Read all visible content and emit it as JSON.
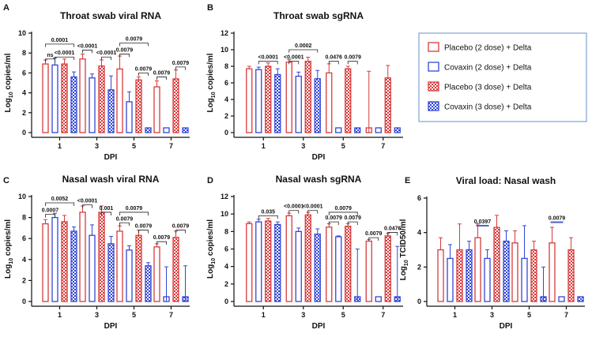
{
  "legend": [
    "Placebo (2 dose) + Delta",
    "Covaxin (2 dose) + Delta",
    "Placebo (3 dose) + Delta",
    "Covaxin (3 dose) + Delta"
  ],
  "colors": {
    "placebo": "#d93a3a",
    "covaxin": "#3246d6",
    "axis": "#111111",
    "log_label_blue": "#555599"
  },
  "chart_data": [
    {
      "panel": "A",
      "type": "bar",
      "title": "Throat swab viral RNA",
      "ylabel_pre": "Log",
      "ylabel_sub": "10",
      "ylabel_post": " copies/ml",
      "xlabel": "DPI",
      "categories": [
        "1",
        "3",
        "5",
        "7"
      ],
      "ylim": [
        0,
        10
      ],
      "yticks": [
        0,
        2,
        4,
        6,
        8,
        10
      ],
      "series": [
        {
          "name": "Placebo (2 dose) + Delta",
          "values": [
            6.9,
            7.4,
            6.4,
            4.6
          ]
        },
        {
          "name": "Covaxin (2 dose) + Delta",
          "values": [
            6.8,
            5.5,
            3.1,
            0
          ]
        },
        {
          "name": "Placebo (3 dose) + Delta",
          "values": [
            6.9,
            6.7,
            5.3,
            5.4
          ]
        },
        {
          "name": "Covaxin (3 dose) + Delta",
          "values": [
            5.6,
            4.3,
            0,
            0
          ]
        }
      ],
      "errors": [
        [
          0.4,
          0.5,
          1.3,
          0.6
        ],
        [
          0.7,
          0.4,
          1.0,
          0
        ],
        [
          0.5,
          0.6,
          0.3,
          0.9
        ],
        [
          0.5,
          1.4,
          0,
          0
        ]
      ],
      "annotations": [
        {
          "text": "ns",
          "g": 0,
          "s1": 0,
          "s2": 1,
          "y": 7.4,
          "h": 0.3
        },
        {
          "text": "<0.0001",
          "g": 0,
          "s1": 1,
          "s2": 3,
          "y": 7.6,
          "h": 0.3
        },
        {
          "text": "0.0001",
          "g": 0,
          "s1": 0,
          "s2": 3,
          "y": 8.9,
          "h": 0.3
        },
        {
          "text": "<0.0001",
          "g": 1,
          "s1": 0,
          "s2": 1,
          "y": 8.3,
          "h": 0.3
        },
        {
          "text": "<0.0001",
          "g": 1,
          "s1": 2,
          "s2": 3,
          "y": 7.6,
          "h": 0.3
        },
        {
          "text": "0.0079",
          "g": 2,
          "s1": 0,
          "s2": 1,
          "y": 7.9,
          "h": 0.3
        },
        {
          "text": "0.0079",
          "g": 2,
          "s1": 0,
          "s2": 3,
          "y": 9.0,
          "h": 0.3
        },
        {
          "text": "0.0079",
          "g": 2,
          "s1": 2,
          "s2": 3,
          "y": 6.0,
          "h": 0.3
        },
        {
          "text": "0.0079",
          "g": 3,
          "s1": 0,
          "s2": 1,
          "y": 5.6,
          "h": 0.3
        },
        {
          "text": "0.0079",
          "g": 3,
          "s1": 2,
          "s2": 3,
          "y": 6.6,
          "h": 0.3
        }
      ]
    },
    {
      "panel": "B",
      "type": "bar",
      "title": "Throat swab sgRNA",
      "ylabel_pre": "Log",
      "ylabel_sub": "10",
      "ylabel_post": " copies/ml",
      "xlabel": "DPI",
      "categories": [
        "1",
        "3",
        "5",
        "7"
      ],
      "ylim": [
        0,
        12
      ],
      "yticks": [
        0,
        2,
        4,
        6,
        8,
        10,
        12
      ],
      "series": [
        {
          "name": "Placebo (2 dose) + Delta",
          "values": [
            7.7,
            8.5,
            7.2,
            0
          ]
        },
        {
          "name": "Covaxin (2 dose) + Delta",
          "values": [
            7.6,
            6.8,
            0,
            0
          ]
        },
        {
          "name": "Placebo (3 dose) + Delta",
          "values": [
            8.0,
            8.6,
            7.7,
            6.6
          ]
        },
        {
          "name": "Covaxin (3 dose) + Delta",
          "values": [
            7.0,
            6.5,
            0,
            0
          ]
        }
      ],
      "errors": [
        [
          0.3,
          0.3,
          1.1,
          7.4
        ],
        [
          0.3,
          0.5,
          0,
          0
        ],
        [
          0.4,
          0.5,
          0.3,
          1.5
        ],
        [
          0.7,
          1.0,
          0,
          0
        ]
      ],
      "annotations": [
        {
          "text": "<0.0001",
          "g": 0,
          "s1": 1,
          "s2": 3,
          "y": 8.6,
          "h": 0.35
        },
        {
          "text": "<0.0001",
          "g": 1,
          "s1": 0,
          "s2": 1,
          "y": 8.6,
          "h": 0.35
        },
        {
          "text": "0.0002",
          "g": 1,
          "s1": 0,
          "s2": 3,
          "y": 10.0,
          "h": 0.35
        },
        {
          "text": "0.0476",
          "g": 2,
          "s1": 0,
          "s2": 1,
          "y": 8.6,
          "h": 0.35
        },
        {
          "text": "0.0079",
          "g": 2,
          "s1": 2,
          "s2": 3,
          "y": 8.6,
          "h": 0.35
        }
      ]
    },
    {
      "panel": "C",
      "type": "bar",
      "title": "Nasal wash viral RNA",
      "ylabel_pre": "Log",
      "ylabel_sub": "10",
      "ylabel_post": " copies/ml",
      "xlabel": "DPI",
      "ylabel_color": "blue",
      "categories": [
        "1",
        "3",
        "5",
        "7"
      ],
      "ylim": [
        0,
        10
      ],
      "yticks": [
        0,
        2,
        4,
        6,
        8,
        10
      ],
      "series": [
        {
          "name": "Placebo (2 dose) + Delta",
          "values": [
            7.4,
            8.5,
            6.7,
            5.2
          ]
        },
        {
          "name": "Covaxin (2 dose) + Delta",
          "values": [
            8.0,
            6.3,
            4.9,
            0
          ]
        },
        {
          "name": "Placebo (3 dose) + Delta",
          "values": [
            7.6,
            8.5,
            6.3,
            6.1
          ]
        },
        {
          "name": "Covaxin (3 dose) + Delta",
          "values": [
            6.7,
            5.5,
            3.4,
            0
          ]
        }
      ],
      "errors": [
        [
          0.4,
          0.6,
          0.5,
          0.3
        ],
        [
          0.4,
          1.0,
          0.4,
          3.3
        ],
        [
          0.6,
          0.6,
          0.5,
          0.6
        ],
        [
          0.4,
          0.7,
          0.3,
          3.4
        ]
      ],
      "annotations": [
        {
          "text": "0.0007",
          "g": 0,
          "s1": 0,
          "s2": 1,
          "y": 8.3,
          "h": 0.3
        },
        {
          "text": "0.0052",
          "g": 0,
          "s1": 0,
          "s2": 3,
          "y": 9.4,
          "h": 0.3
        },
        {
          "text": "<0.0001",
          "g": 1,
          "s1": 0,
          "s2": 1,
          "y": 9.2,
          "h": 0.3
        },
        {
          "text": "0.001",
          "g": 1,
          "s1": 2,
          "s2": 3,
          "y": 8.5,
          "h": 0.3
        },
        {
          "text": "0.0079",
          "g": 2,
          "s1": 0,
          "s2": 1,
          "y": 7.5,
          "h": 0.3
        },
        {
          "text": "0.0079",
          "g": 2,
          "s1": 0,
          "s2": 3,
          "y": 8.5,
          "h": 0.3
        },
        {
          "text": "0.0079",
          "g": 2,
          "s1": 2,
          "s2": 3,
          "y": 6.8,
          "h": 0.3
        },
        {
          "text": "0.0079",
          "g": 3,
          "s1": 0,
          "s2": 1,
          "y": 5.7,
          "h": 0.3
        },
        {
          "text": "0.0079",
          "g": 3,
          "s1": 2,
          "s2": 3,
          "y": 6.8,
          "h": 0.3
        }
      ]
    },
    {
      "panel": "D",
      "type": "bar",
      "title": "Nasal wash sgRNA",
      "ylabel_pre": "Log",
      "ylabel_sub": "10",
      "ylabel_post": " copies/ml",
      "xlabel": "DPI",
      "categories": [
        "1",
        "3",
        "5",
        "7"
      ],
      "ylim": [
        0,
        12
      ],
      "yticks": [
        0,
        2,
        4,
        6,
        8,
        10,
        12
      ],
      "series": [
        {
          "name": "Placebo (2 dose) + Delta",
          "values": [
            8.9,
            9.8,
            8.5,
            6.9
          ]
        },
        {
          "name": "Covaxin (2 dose) + Delta",
          "values": [
            9.1,
            8.0,
            7.4,
            0
          ]
        },
        {
          "name": "Placebo (3 dose) + Delta",
          "values": [
            9.2,
            9.9,
            8.6,
            7.5
          ]
        },
        {
          "name": "Covaxin (3 dose) + Delta",
          "values": [
            8.8,
            7.7,
            0,
            0
          ]
        }
      ],
      "errors": [
        [
          0.2,
          0.3,
          0.4,
          0.2
        ],
        [
          0.3,
          0.4,
          0.1,
          0
        ],
        [
          0.3,
          0.3,
          0.3,
          0.3
        ],
        [
          0.3,
          0.6,
          6.0,
          6.3
        ]
      ],
      "annotations": [
        {
          "text": "0.035",
          "g": 0,
          "s1": 1,
          "s2": 3,
          "y": 9.8,
          "h": 0.35
        },
        {
          "text": "<0.0001",
          "g": 1,
          "s1": 0,
          "s2": 1,
          "y": 10.4,
          "h": 0.35
        },
        {
          "text": "<0.0001",
          "g": 1,
          "s1": 2,
          "s2": 3,
          "y": 10.4,
          "h": 0.35
        },
        {
          "text": "0.0079",
          "g": 2,
          "s1": 0,
          "s2": 1,
          "y": 9.1,
          "h": 0.35
        },
        {
          "text": "0.0079",
          "g": 2,
          "s1": 2,
          "s2": 3,
          "y": 9.1,
          "h": 0.35
        },
        {
          "text": "0.0079",
          "g": 2,
          "s1": 0,
          "s2": 3,
          "y": 10.2,
          "h": 0.35
        },
        {
          "text": "0.0079",
          "g": 3,
          "s1": 0,
          "s2": 1,
          "y": 7.3,
          "h": 0.35
        },
        {
          "text": "0.0476",
          "g": 3,
          "s1": 2,
          "s2": 3,
          "y": 7.9,
          "h": 0.35
        }
      ]
    },
    {
      "panel": "E",
      "type": "bar",
      "title": "Viral load: Nasal wash",
      "ylabel_pre": "Log",
      "ylabel_sub": "10",
      "ylabel_post": " TCID50/ml",
      "xlabel": "DPI",
      "categories": [
        "1",
        "3",
        "5",
        "7"
      ],
      "ylim": [
        0,
        6
      ],
      "yticks": [
        0,
        2,
        4,
        6
      ],
      "series": [
        {
          "name": "Placebo (2 dose) + Delta",
          "values": [
            3.0,
            3.7,
            3.4,
            3.4
          ]
        },
        {
          "name": "Covaxin (2 dose) + Delta",
          "values": [
            2.5,
            2.5,
            2.5,
            0
          ]
        },
        {
          "name": "Placebo (3 dose) + Delta",
          "values": [
            3.0,
            4.3,
            3.0,
            3.0
          ]
        },
        {
          "name": "Covaxin (3 dose) + Delta",
          "values": [
            3.0,
            3.5,
            0,
            0
          ]
        }
      ],
      "errors": [
        [
          0.7,
          0.8,
          0.7,
          0.9
        ],
        [
          0.8,
          0.5,
          1.9,
          0
        ],
        [
          1.5,
          0.7,
          0.5,
          0.7
        ],
        [
          0.5,
          0.6,
          2.0,
          0
        ]
      ],
      "annotations": [
        {
          "text": "0.0397",
          "g": 1,
          "s1": 0,
          "s2": 1,
          "y": 4.4,
          "h": 0,
          "style": "line"
        },
        {
          "text": "0.0079",
          "g": 3,
          "s1": 0,
          "s2": 1,
          "y": 4.6,
          "h": 0,
          "style": "line"
        }
      ]
    }
  ]
}
